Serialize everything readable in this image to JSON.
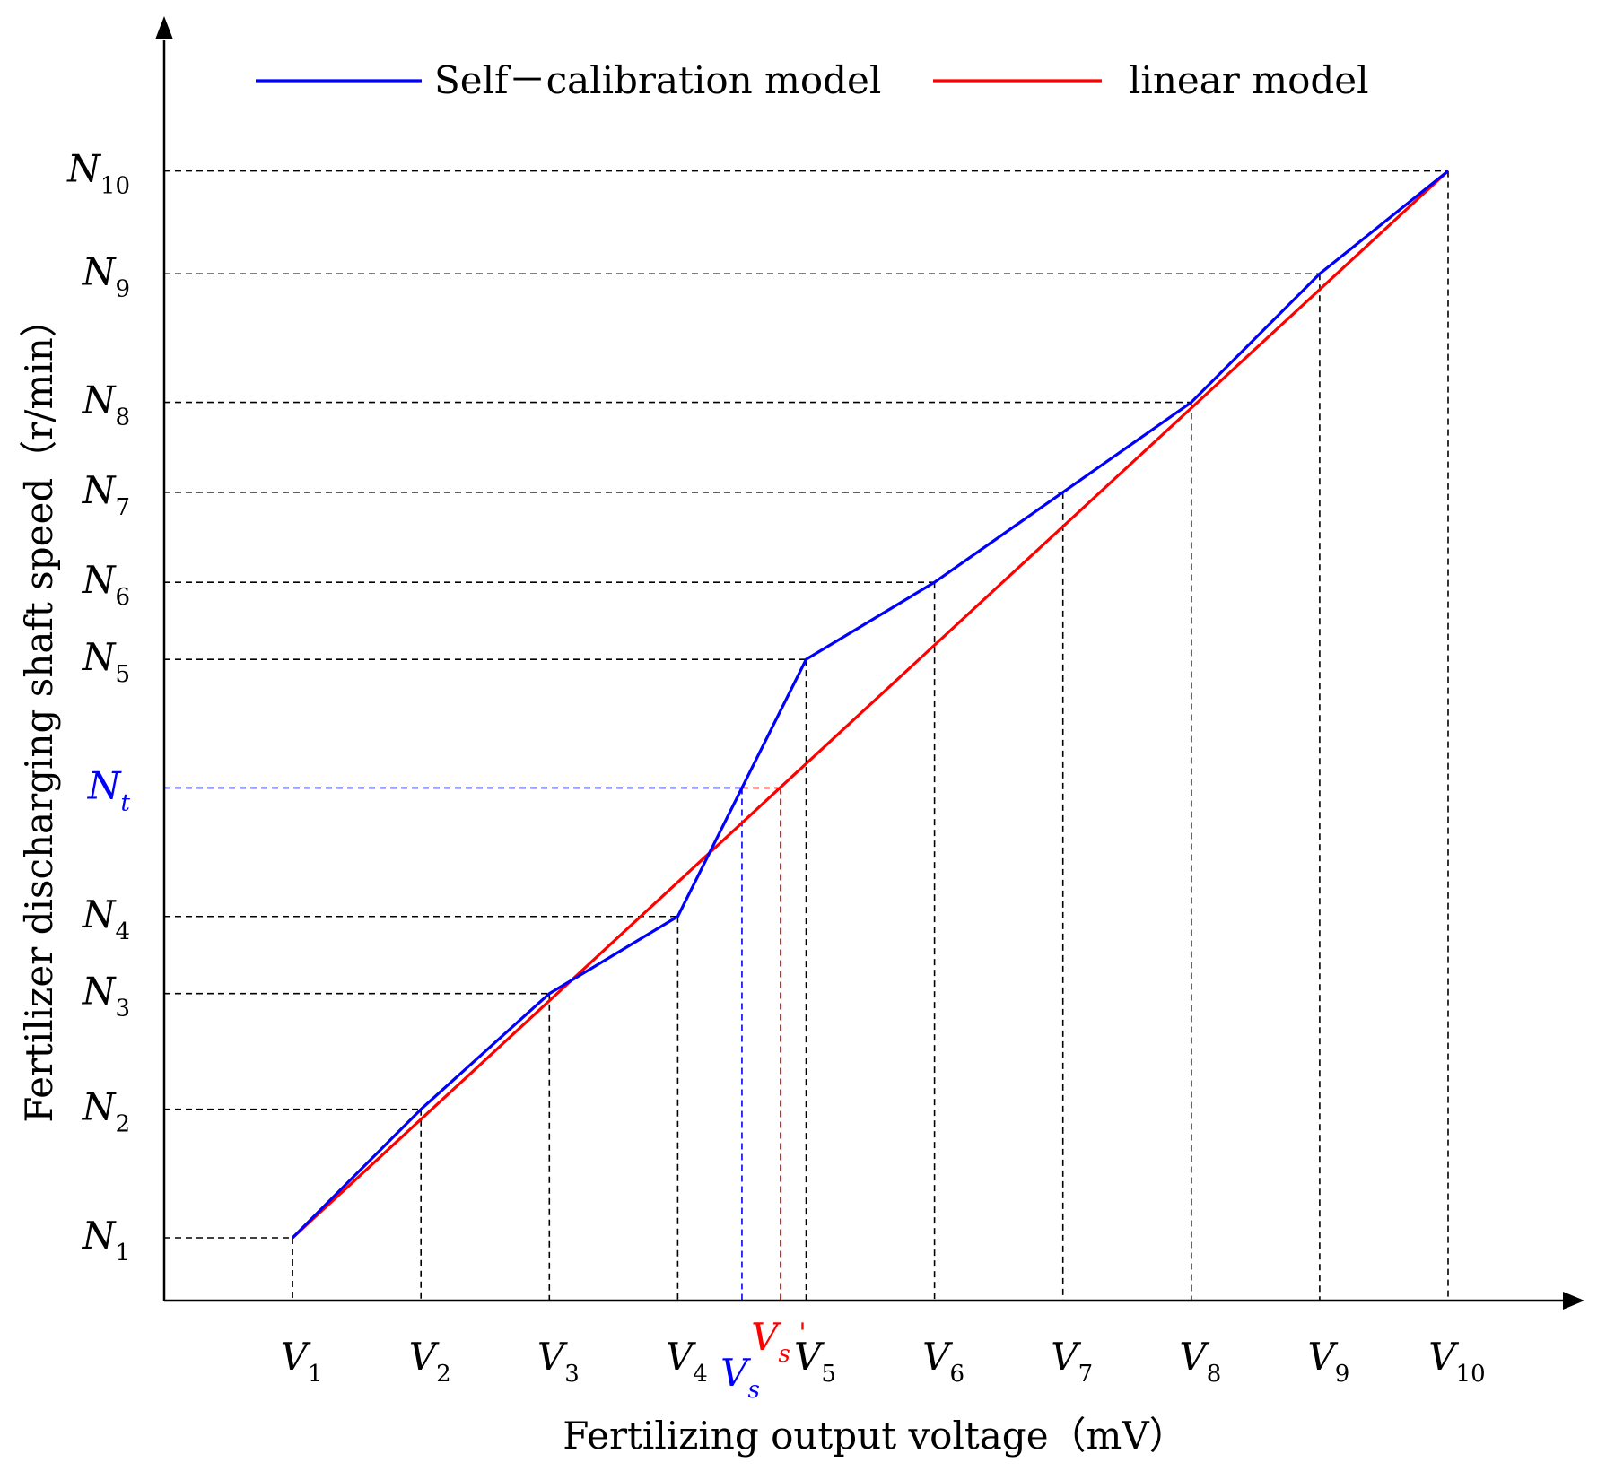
{
  "chart_data": {
    "type": "line",
    "xlabel": "Fertilizing output voltage（mV）",
    "ylabel": "Fertilizer discharging shaft speed（r/min）",
    "x_ticks": [
      "V1",
      "V2",
      "V3",
      "V4",
      "V5",
      "V6",
      "V7",
      "V8",
      "V9",
      "V10"
    ],
    "y_ticks": [
      "N1",
      "N2",
      "N3",
      "N4",
      "N5",
      "N6",
      "N7",
      "N8",
      "N9",
      "N10"
    ],
    "x_ticks_detail": [
      {
        "base": "V",
        "sub": "1"
      },
      {
        "base": "V",
        "sub": "2"
      },
      {
        "base": "V",
        "sub": "3"
      },
      {
        "base": "V",
        "sub": "4"
      },
      {
        "base": "V",
        "sub": "5"
      },
      {
        "base": "V",
        "sub": "6"
      },
      {
        "base": "V",
        "sub": "7"
      },
      {
        "base": "V",
        "sub": "8"
      },
      {
        "base": "V",
        "sub": "9"
      },
      {
        "base": "V",
        "sub": "10"
      }
    ],
    "y_ticks_detail": [
      {
        "base": "N",
        "sub": "1",
        "value": 1.0
      },
      {
        "base": "N",
        "sub": "2",
        "value": 2.0
      },
      {
        "base": "N",
        "sub": "3",
        "value": 2.9
      },
      {
        "base": "N",
        "sub": "4",
        "value": 3.5
      },
      {
        "base": "N",
        "sub": "5",
        "value": 5.5
      },
      {
        "base": "N",
        "sub": "6",
        "value": 6.1
      },
      {
        "base": "N",
        "sub": "7",
        "value": 6.8
      },
      {
        "base": "N",
        "sub": "8",
        "value": 7.5
      },
      {
        "base": "N",
        "sub": "9",
        "value": 8.5
      },
      {
        "base": "N",
        "sub": "10",
        "value": 9.3
      }
    ],
    "xlim": [
      0,
      11
    ],
    "ylim": [
      0.5,
      10.2
    ],
    "legend": {
      "placement": "top"
    },
    "series": [
      {
        "name": "Self－calibration model",
        "color": "#0000ff",
        "x": [
          1,
          2,
          3,
          4,
          5,
          6,
          7,
          8,
          9,
          10
        ],
        "y": [
          1.0,
          2.0,
          2.9,
          3.5,
          5.5,
          6.1,
          6.8,
          7.5,
          8.5,
          9.3
        ]
      },
      {
        "name": "linear model",
        "color": "#ff0000",
        "x": [
          1,
          10
        ],
        "y": [
          1.0,
          9.3
        ]
      }
    ],
    "annotations": {
      "Nt": {
        "base": "N",
        "sub": "t",
        "value": 4.5,
        "color": "#0000ff"
      },
      "Vs": {
        "base": "V",
        "sub": "s",
        "value": 4.5,
        "color": "#0000ff"
      },
      "Vs_prime": {
        "base": "V",
        "sub": "s",
        "suffix": "'",
        "value": 4.8,
        "color": "#ff0000"
      }
    },
    "grid": false
  }
}
